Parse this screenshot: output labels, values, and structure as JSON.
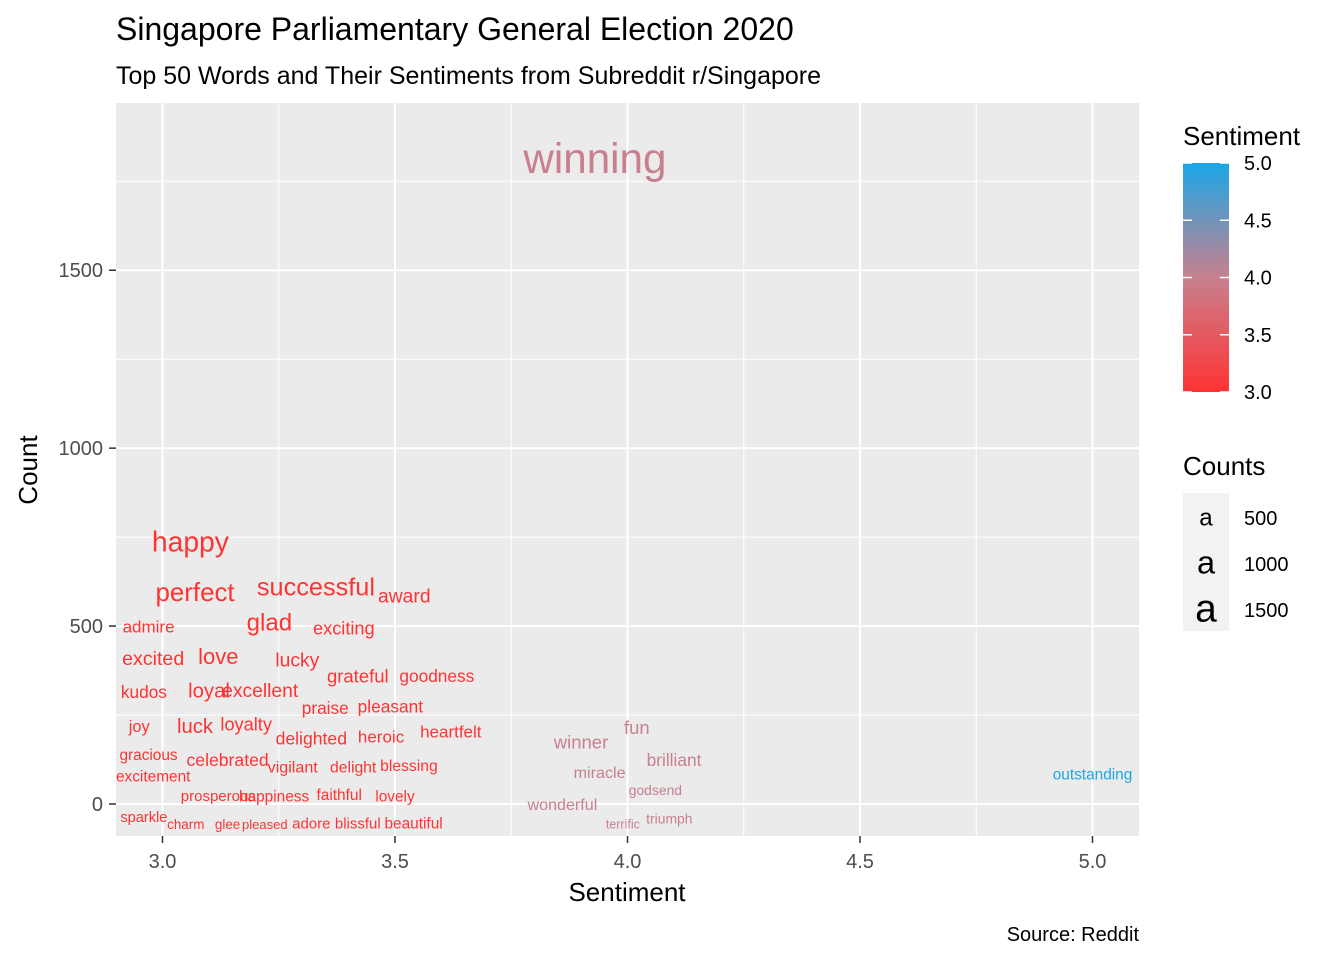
{
  "title": "Singapore Parliamentary General Election 2020",
  "subtitle": "Top 50 Words and Their Sentiments from Subreddit r/Singapore",
  "caption": "Source: Reddit",
  "legend": {
    "color_title": "Sentiment",
    "color_labels": [
      "5.0",
      "4.5",
      "4.0",
      "3.5",
      "3.0"
    ],
    "size_title": "Counts",
    "size_glyph": "a",
    "size_labels": [
      "500",
      "1000",
      "1500"
    ]
  },
  "chart_data": {
    "type": "scatter",
    "title": "Singapore Parliamentary General Election 2020",
    "subtitle": "Top 50 Words and Their Sentiments from Subreddit r/Singapore",
    "xlabel": "Sentiment",
    "ylabel": "Count",
    "xlim": [
      2.9,
      5.1
    ],
    "ylim": [
      -90,
      1970
    ],
    "xticks": [
      "3.0",
      "3.5",
      "4.0",
      "4.5",
      "5.0"
    ],
    "yticks": [
      "0",
      "500",
      "1000",
      "1500"
    ],
    "color_scale": {
      "low": 3.0,
      "high": 5.0,
      "low_color": "#ff3333",
      "mid_color": "#c8808e",
      "high_color": "#1aa7e6"
    },
    "grid": true,
    "legend_position": "right",
    "points": [
      {
        "word": "winning",
        "x": 3.93,
        "y": 1805,
        "count": 1805,
        "sentiment": 4.0
      },
      {
        "word": "happy",
        "x": 3.06,
        "y": 730,
        "count": 730,
        "sentiment": 3.0
      },
      {
        "word": "perfect",
        "x": 3.07,
        "y": 590,
        "count": 590,
        "sentiment": 3.0
      },
      {
        "word": "successful",
        "x": 3.33,
        "y": 605,
        "count": 560,
        "sentiment": 3.0
      },
      {
        "word": "award",
        "x": 3.52,
        "y": 580,
        "count": 290,
        "sentiment": 3.0
      },
      {
        "word": "glad",
        "x": 3.23,
        "y": 505,
        "count": 500,
        "sentiment": 3.0
      },
      {
        "word": "admire",
        "x": 2.97,
        "y": 495,
        "count": 210,
        "sentiment": 3.0
      },
      {
        "word": "exciting",
        "x": 3.39,
        "y": 490,
        "count": 250,
        "sentiment": 3.0
      },
      {
        "word": "excited",
        "x": 2.98,
        "y": 405,
        "count": 300,
        "sentiment": 3.0
      },
      {
        "word": "love",
        "x": 3.12,
        "y": 410,
        "count": 400,
        "sentiment": 3.0
      },
      {
        "word": "lucky",
        "x": 3.29,
        "y": 400,
        "count": 290,
        "sentiment": 3.0
      },
      {
        "word": "grateful",
        "x": 3.42,
        "y": 355,
        "count": 260,
        "sentiment": 3.0
      },
      {
        "word": "goodness",
        "x": 3.59,
        "y": 355,
        "count": 220,
        "sentiment": 3.0
      },
      {
        "word": "kudos",
        "x": 2.96,
        "y": 310,
        "count": 220,
        "sentiment": 3.0
      },
      {
        "word": "loyal",
        "x": 3.1,
        "y": 315,
        "count": 330,
        "sentiment": 3.0
      },
      {
        "word": "excellent",
        "x": 3.21,
        "y": 315,
        "count": 290,
        "sentiment": 3.0
      },
      {
        "word": "praise",
        "x": 3.35,
        "y": 265,
        "count": 220,
        "sentiment": 3.0
      },
      {
        "word": "pleasant",
        "x": 3.49,
        "y": 270,
        "count": 220,
        "sentiment": 3.0
      },
      {
        "word": "joy",
        "x": 2.95,
        "y": 215,
        "count": 190,
        "sentiment": 3.0
      },
      {
        "word": "luck",
        "x": 3.07,
        "y": 215,
        "count": 330,
        "sentiment": 3.0
      },
      {
        "word": "loyalty",
        "x": 3.18,
        "y": 220,
        "count": 250,
        "sentiment": 3.0
      },
      {
        "word": "heartfelt",
        "x": 3.62,
        "y": 200,
        "count": 210,
        "sentiment": 3.0
      },
      {
        "word": "delighted",
        "x": 3.32,
        "y": 180,
        "count": 230,
        "sentiment": 3.0
      },
      {
        "word": "heroic",
        "x": 3.47,
        "y": 185,
        "count": 210,
        "sentiment": 3.0
      },
      {
        "word": "gracious",
        "x": 2.97,
        "y": 135,
        "count": 160,
        "sentiment": 3.0
      },
      {
        "word": "celebrated",
        "x": 3.14,
        "y": 120,
        "count": 230,
        "sentiment": 3.0
      },
      {
        "word": "vigilant",
        "x": 3.28,
        "y": 100,
        "count": 180,
        "sentiment": 3.0
      },
      {
        "word": "delight",
        "x": 3.41,
        "y": 100,
        "count": 170,
        "sentiment": 3.0
      },
      {
        "word": "blessing",
        "x": 3.53,
        "y": 105,
        "count": 170,
        "sentiment": 3.0
      },
      {
        "word": "excitement",
        "x": 2.98,
        "y": 75,
        "count": 160,
        "sentiment": 3.0
      },
      {
        "word": "prosperous",
        "x": 3.12,
        "y": 20,
        "count": 150,
        "sentiment": 3.0
      },
      {
        "word": "happiness",
        "x": 3.24,
        "y": 18,
        "count": 160,
        "sentiment": 3.0
      },
      {
        "word": "faithful",
        "x": 3.38,
        "y": 22,
        "count": 160,
        "sentiment": 3.0
      },
      {
        "word": "lovely",
        "x": 3.5,
        "y": 18,
        "count": 160,
        "sentiment": 3.0
      },
      {
        "word": "sparkle",
        "x": 2.96,
        "y": -40,
        "count": 140,
        "sentiment": 3.0
      },
      {
        "word": "charm",
        "x": 3.05,
        "y": -60,
        "count": 110,
        "sentiment": 3.0
      },
      {
        "word": "glee",
        "x": 3.14,
        "y": -60,
        "count": 110,
        "sentiment": 3.0
      },
      {
        "word": "pleased",
        "x": 3.22,
        "y": -60,
        "count": 100,
        "sentiment": 3.0
      },
      {
        "word": "adore",
        "x": 3.32,
        "y": -58,
        "count": 150,
        "sentiment": 3.0
      },
      {
        "word": "blissful",
        "x": 3.42,
        "y": -58,
        "count": 150,
        "sentiment": 3.0
      },
      {
        "word": "beautiful",
        "x": 3.54,
        "y": -58,
        "count": 160,
        "sentiment": 3.0
      },
      {
        "word": "fun",
        "x": 4.02,
        "y": 210,
        "count": 260,
        "sentiment": 4.0
      },
      {
        "word": "winner",
        "x": 3.9,
        "y": 170,
        "count": 260,
        "sentiment": 4.0
      },
      {
        "word": "brilliant",
        "x": 4.1,
        "y": 120,
        "count": 220,
        "sentiment": 4.0
      },
      {
        "word": "miracle",
        "x": 3.94,
        "y": 85,
        "count": 180,
        "sentiment": 4.0
      },
      {
        "word": "godsend",
        "x": 4.06,
        "y": 35,
        "count": 120,
        "sentiment": 4.0
      },
      {
        "word": "wonderful",
        "x": 3.86,
        "y": -5,
        "count": 180,
        "sentiment": 4.0
      },
      {
        "word": "triumph",
        "x": 4.09,
        "y": -45,
        "count": 120,
        "sentiment": 4.0
      },
      {
        "word": "terrific",
        "x": 3.99,
        "y": -60,
        "count": 90,
        "sentiment": 4.0
      },
      {
        "word": "outstanding",
        "x": 5.0,
        "y": 80,
        "count": 160,
        "sentiment": 5.0
      }
    ]
  }
}
